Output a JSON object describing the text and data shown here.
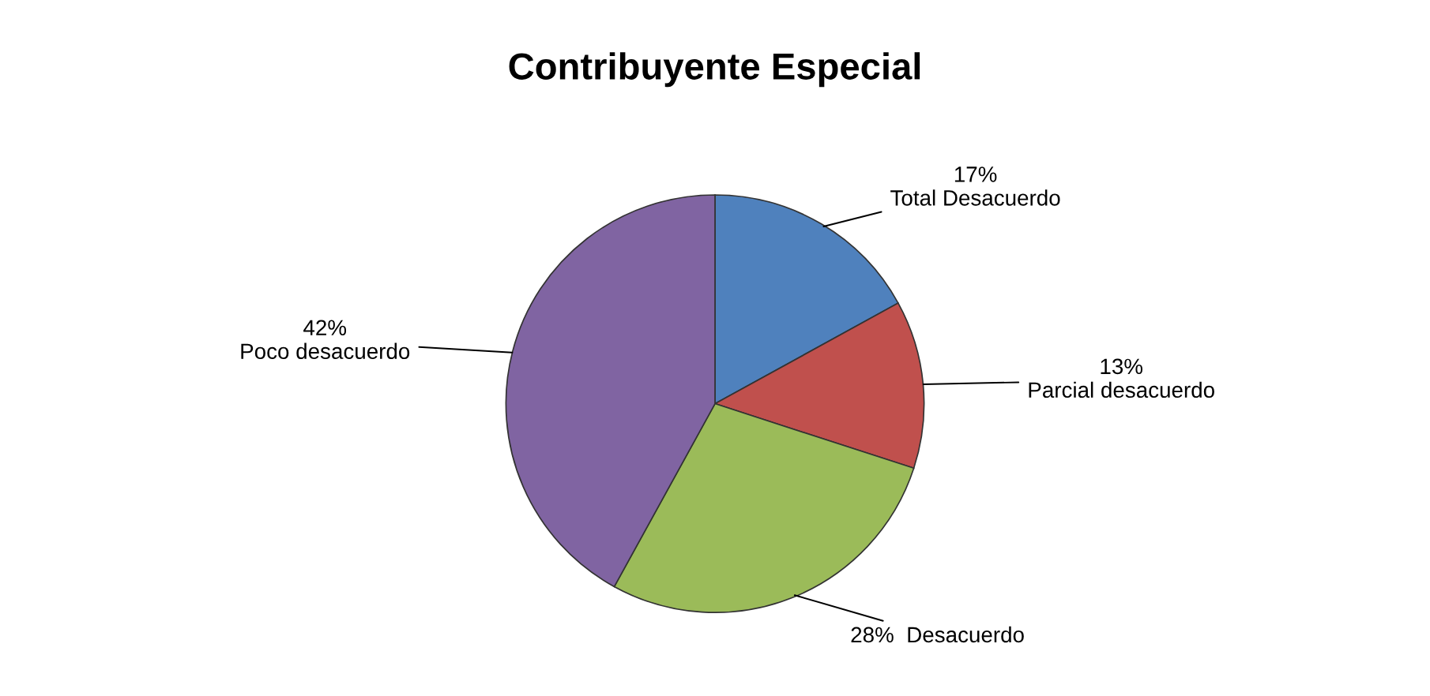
{
  "chart_data": {
    "type": "pie",
    "title": "Contribuyente Especial",
    "categories": [
      "Total Desacuerdo",
      "Parcial desacuerdo",
      "Desacuerdo",
      "Poco desacuerdo"
    ],
    "values": [
      17,
      13,
      28,
      42
    ],
    "value_labels": [
      "17%",
      "13%",
      "28%",
      "42%"
    ],
    "colors": [
      "#4f81bd",
      "#c0504d",
      "#9bbb59",
      "#8064a2"
    ]
  }
}
